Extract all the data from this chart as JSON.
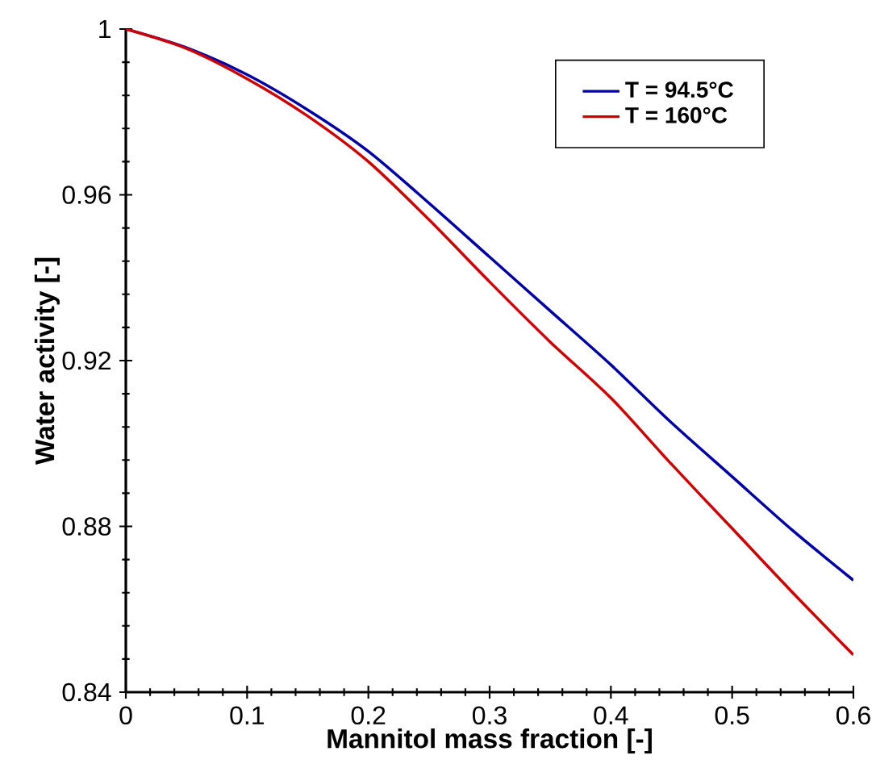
{
  "chart_data": {
    "type": "line",
    "xlabel": "Mannitol mass fraction [-]",
    "ylabel": "Water activity [-]",
    "xlim": [
      0,
      0.6
    ],
    "ylim": [
      0.84,
      1
    ],
    "xticks": [
      0,
      0.1,
      0.2,
      0.3,
      0.4,
      0.5,
      0.6
    ],
    "yticks": [
      0.84,
      0.88,
      0.92,
      0.96,
      1
    ],
    "legend": "top right",
    "series": [
      {
        "name": "T = 94.5°C",
        "color": "#0000a8",
        "x": [
          0,
          0.05,
          0.1,
          0.15,
          0.2,
          0.25,
          0.3,
          0.35,
          0.4,
          0.45,
          0.5,
          0.55,
          0.6
        ],
        "values": [
          1,
          0.9955,
          0.989,
          0.9805,
          0.9705,
          0.958,
          0.945,
          0.932,
          0.919,
          0.905,
          0.892,
          0.879,
          0.867
        ]
      },
      {
        "name": "T = 160°C",
        "color": "#d00000",
        "x": [
          0,
          0.05,
          0.1,
          0.15,
          0.2,
          0.25,
          0.3,
          0.35,
          0.4,
          0.45,
          0.5,
          0.55,
          0.6
        ],
        "values": [
          1,
          0.9953,
          0.988,
          0.979,
          0.968,
          0.954,
          0.939,
          0.9245,
          0.911,
          0.895,
          0.8795,
          0.864,
          0.849
        ]
      }
    ]
  }
}
